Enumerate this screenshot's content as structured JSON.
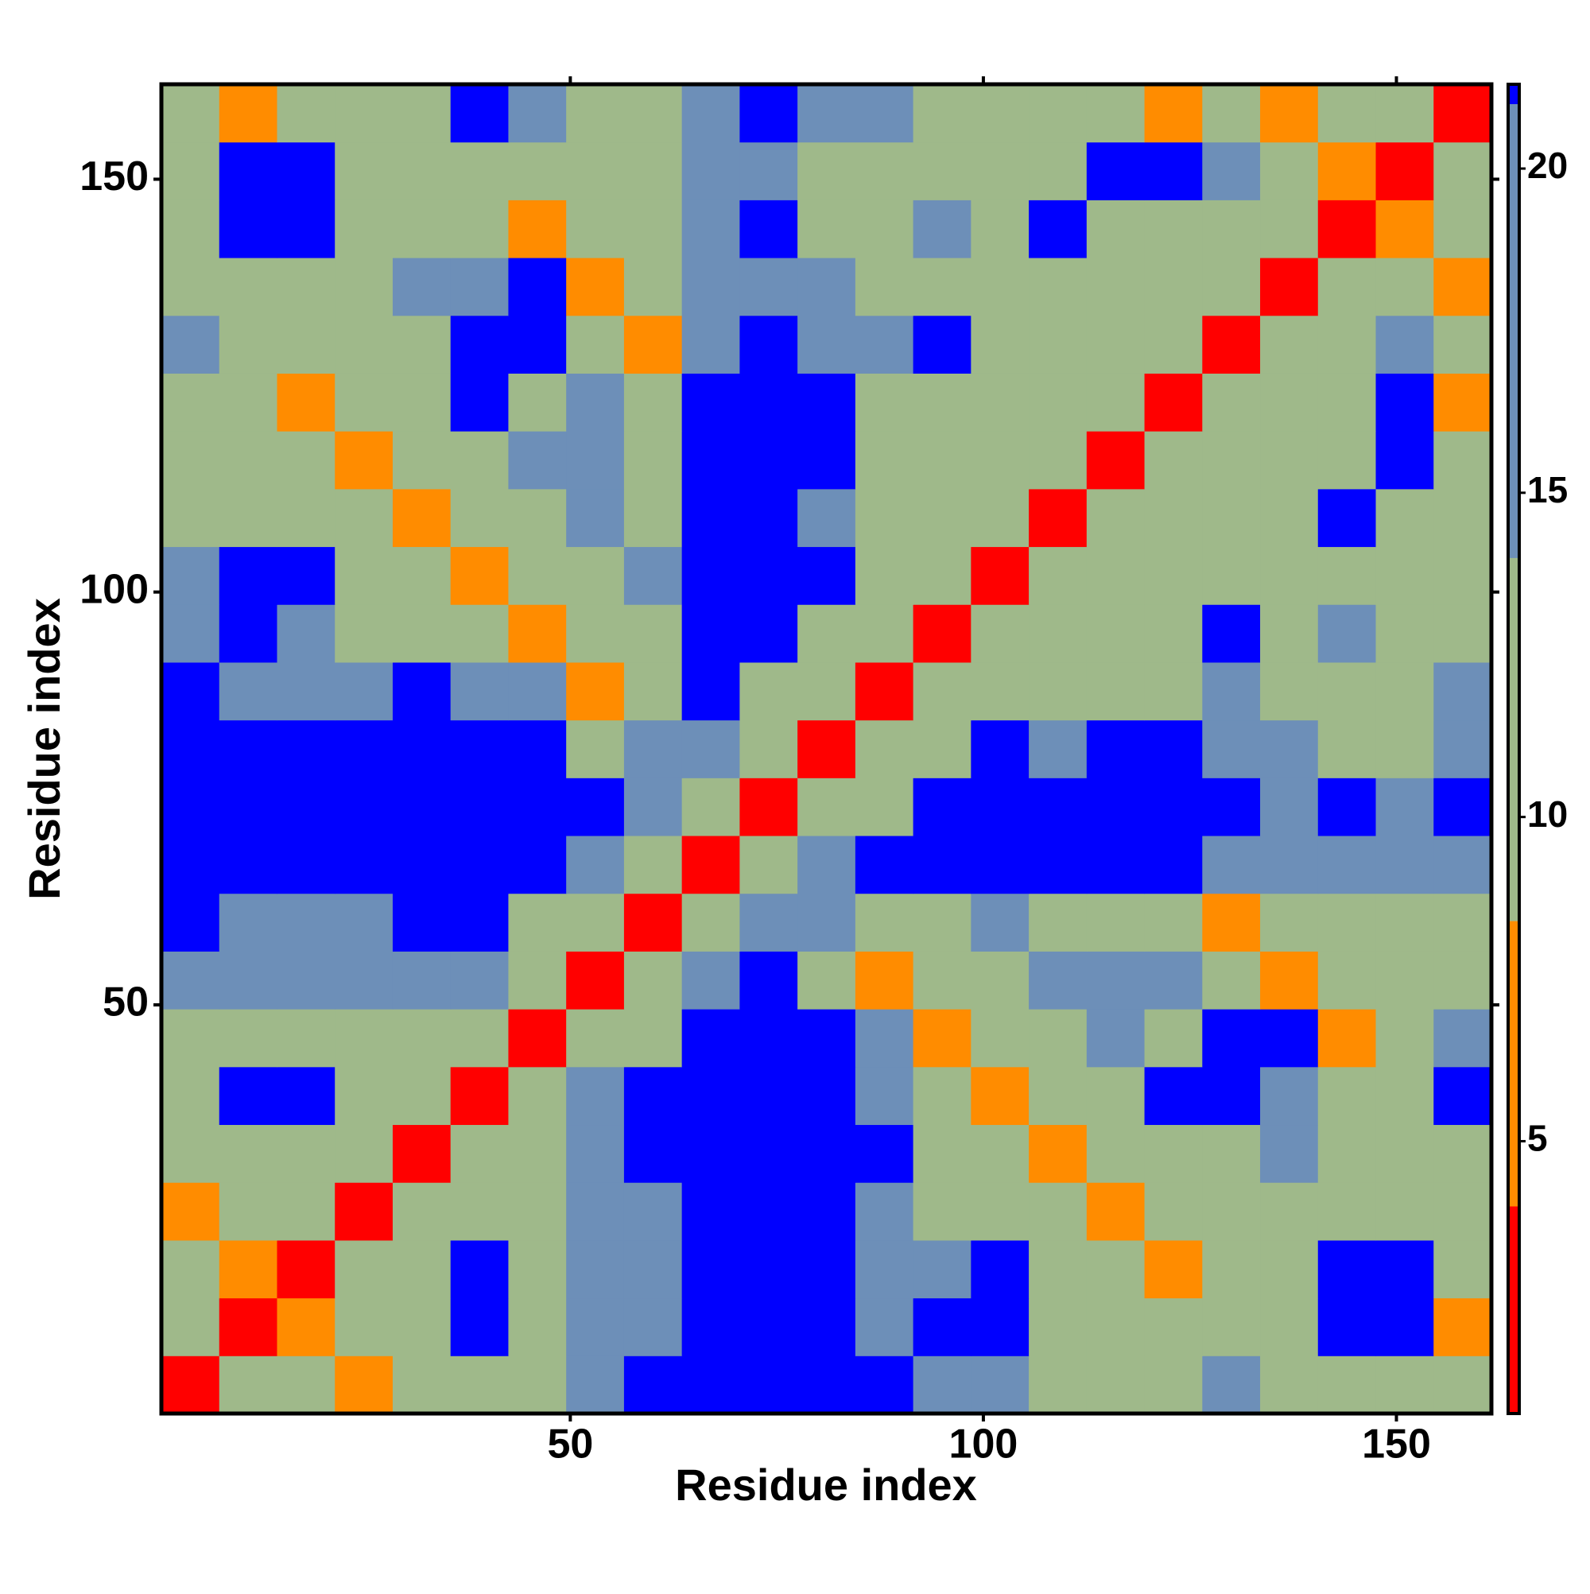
{
  "chart_data": {
    "type": "heatmap",
    "xlabel": "Residue index",
    "ylabel": "Residue index",
    "xlim": [
      0.5,
      161.5
    ],
    "ylim": [
      0.5,
      161.5
    ],
    "xticks": [
      50,
      100,
      150
    ],
    "yticks": [
      50,
      100,
      150
    ],
    "xbins": [
      0.5,
      7.5,
      14.5,
      21.5,
      28.5,
      35.5,
      42.5,
      49.5,
      56.5,
      63.5,
      70.5,
      77.5,
      84.5,
      91.5,
      98.5,
      105.5,
      112.5,
      119.5,
      126.5,
      133.5,
      140.5,
      147.5,
      154.5,
      161.5
    ],
    "ybins": [
      0.5,
      7.5,
      14.5,
      21.5,
      28.5,
      35.5,
      42.5,
      49.5,
      56.5,
      63.5,
      70.5,
      77.5,
      84.5,
      91.5,
      98.5,
      105.5,
      112.5,
      119.5,
      126.5,
      133.5,
      140.5,
      147.5,
      154.5,
      161.5
    ],
    "z": [
      [
        3,
        11,
        11,
        6,
        11,
        11,
        11,
        17,
        22,
        22,
        22,
        22,
        22,
        17,
        17,
        11,
        11,
        11,
        17,
        11,
        11,
        11,
        11
      ],
      [
        11,
        3,
        6,
        11,
        11,
        22,
        11,
        17,
        17,
        22,
        22,
        22,
        17,
        22,
        22,
        11,
        11,
        11,
        11,
        11,
        22,
        22,
        6
      ],
      [
        11,
        6,
        3,
        11,
        11,
        22,
        11,
        17,
        17,
        22,
        22,
        22,
        17,
        17,
        22,
        11,
        11,
        6,
        11,
        11,
        22,
        22,
        11
      ],
      [
        6,
        11,
        11,
        3,
        11,
        11,
        11,
        17,
        17,
        22,
        22,
        22,
        17,
        11,
        11,
        11,
        6,
        11,
        11,
        11,
        11,
        11,
        11
      ],
      [
        11,
        11,
        11,
        11,
        3,
        11,
        11,
        17,
        22,
        22,
        22,
        22,
        22,
        11,
        11,
        6,
        11,
        11,
        11,
        17,
        11,
        11,
        11
      ],
      [
        11,
        22,
        22,
        11,
        11,
        3,
        11,
        17,
        22,
        22,
        22,
        22,
        17,
        11,
        6,
        11,
        11,
        22,
        22,
        17,
        11,
        11,
        22
      ],
      [
        11,
        11,
        11,
        11,
        11,
        11,
        3,
        11,
        11,
        22,
        22,
        22,
        17,
        6,
        11,
        11,
        17,
        11,
        22,
        22,
        6,
        11,
        17
      ],
      [
        17,
        17,
        17,
        17,
        17,
        17,
        11,
        3,
        11,
        17,
        22,
        11,
        6,
        11,
        11,
        17,
        17,
        17,
        11,
        6,
        11,
        11,
        11
      ],
      [
        22,
        17,
        17,
        17,
        22,
        22,
        11,
        11,
        3,
        11,
        17,
        17,
        11,
        11,
        17,
        11,
        11,
        11,
        6,
        11,
        11,
        11,
        11
      ],
      [
        22,
        22,
        22,
        22,
        22,
        22,
        22,
        17,
        11,
        3,
        11,
        17,
        22,
        22,
        22,
        22,
        22,
        22,
        17,
        17,
        17,
        17,
        17
      ],
      [
        22,
        22,
        22,
        22,
        22,
        22,
        22,
        22,
        17,
        11,
        3,
        11,
        11,
        22,
        22,
        22,
        22,
        22,
        22,
        17,
        22,
        17,
        22
      ],
      [
        22,
        22,
        22,
        22,
        22,
        22,
        22,
        11,
        17,
        17,
        11,
        3,
        11,
        11,
        22,
        17,
        22,
        22,
        17,
        17,
        11,
        11,
        17
      ],
      [
        22,
        17,
        17,
        17,
        22,
        17,
        17,
        6,
        11,
        22,
        11,
        11,
        3,
        11,
        11,
        11,
        11,
        11,
        17,
        11,
        11,
        11,
        17
      ],
      [
        17,
        22,
        17,
        11,
        11,
        11,
        6,
        11,
        11,
        22,
        22,
        11,
        11,
        3,
        11,
        11,
        11,
        11,
        22,
        11,
        17,
        11,
        11
      ],
      [
        17,
        22,
        22,
        11,
        11,
        6,
        11,
        11,
        17,
        22,
        22,
        22,
        11,
        11,
        3,
        11,
        11,
        11,
        11,
        11,
        11,
        11,
        11
      ],
      [
        11,
        11,
        11,
        11,
        6,
        11,
        11,
        17,
        11,
        22,
        22,
        17,
        11,
        11,
        11,
        3,
        11,
        11,
        11,
        11,
        22,
        11,
        11
      ],
      [
        11,
        11,
        11,
        6,
        11,
        11,
        17,
        17,
        11,
        22,
        22,
        22,
        11,
        11,
        11,
        11,
        3,
        11,
        11,
        11,
        11,
        22,
        11
      ],
      [
        11,
        11,
        6,
        11,
        11,
        22,
        11,
        17,
        11,
        22,
        22,
        22,
        11,
        11,
        11,
        11,
        11,
        3,
        11,
        11,
        11,
        22,
        6
      ],
      [
        17,
        11,
        11,
        11,
        11,
        22,
        22,
        11,
        6,
        17,
        22,
        17,
        17,
        22,
        11,
        11,
        11,
        11,
        3,
        11,
        11,
        17,
        11
      ],
      [
        11,
        11,
        11,
        11,
        17,
        17,
        22,
        6,
        11,
        17,
        17,
        17,
        11,
        11,
        11,
        11,
        11,
        11,
        11,
        3,
        11,
        11,
        6
      ],
      [
        11,
        22,
        22,
        11,
        11,
        11,
        6,
        11,
        11,
        17,
        22,
        11,
        11,
        17,
        11,
        22,
        11,
        11,
        11,
        11,
        3,
        6,
        11
      ],
      [
        11,
        22,
        22,
        11,
        11,
        11,
        11,
        11,
        11,
        17,
        17,
        11,
        11,
        11,
        11,
        11,
        22,
        22,
        17,
        11,
        6,
        3,
        11
      ],
      [
        11,
        6,
        11,
        11,
        11,
        22,
        17,
        11,
        11,
        17,
        22,
        17,
        17,
        11,
        11,
        11,
        11,
        6,
        11,
        6,
        11,
        11,
        3
      ]
    ],
    "colorbar": {
      "lim": [
        0.8,
        21.3
      ],
      "ticks": [
        5,
        10,
        15,
        20
      ],
      "levels": [
        {
          "from": 0.8,
          "to": 4.0,
          "color": "#ff0000"
        },
        {
          "from": 4.0,
          "to": 8.4,
          "color": "#ff8c00"
        },
        {
          "from": 8.4,
          "to": 14,
          "color": "#9fb98a"
        },
        {
          "from": 14,
          "to": 21,
          "color": "#6d8fb8"
        },
        {
          "from": 21,
          "to": 21.3,
          "color": "#0000ff"
        }
      ]
    }
  }
}
